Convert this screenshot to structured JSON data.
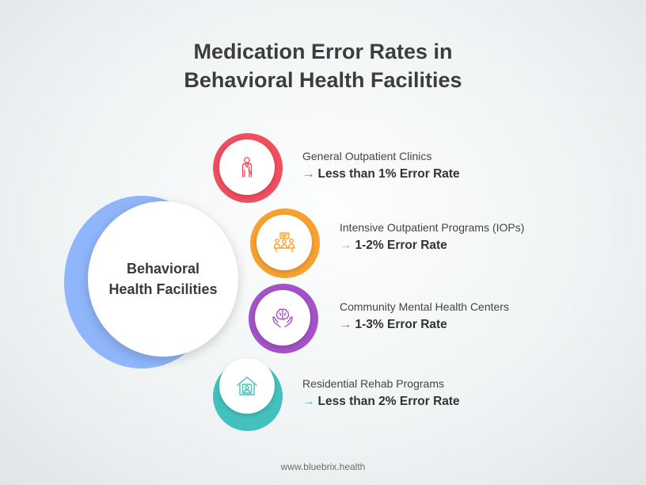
{
  "title": {
    "line1": "Medication Error Rates in",
    "line2": "Behavioral Health Facilities"
  },
  "hub": {
    "line1": "Behavioral",
    "line2": "Health Facilities",
    "color": "#8fb6fb"
  },
  "items": [
    {
      "name": "General Outpatient Clinics",
      "arrow": "→",
      "rate": "Less than 1% Error Rate",
      "color": "#ef4f5e",
      "icon": "doctor-icon"
    },
    {
      "name": "Intensive Outpatient Programs (IOPs)",
      "arrow": "→",
      "rate": "1-2% Error Rate",
      "color": "#f7a230",
      "icon": "group-meeting-icon"
    },
    {
      "name": "Community Mental Health Centers",
      "arrow": "→",
      "rate": "1-3% Error Rate",
      "color": "#a452c8",
      "icon": "brain-in-hands-icon"
    },
    {
      "name": "Residential Rehab Programs",
      "arrow": "→",
      "rate": "Less than 2% Error Rate",
      "color": "#43c1bd",
      "icon": "house-person-icon"
    }
  ],
  "footer": "www.bluebrix.health"
}
